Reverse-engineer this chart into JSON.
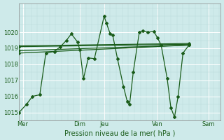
{
  "title": "",
  "xlabel": "Pression niveau de la mer( hPa )",
  "ylim": [
    1014.5,
    1021.8
  ],
  "xlim": [
    0,
    8.3
  ],
  "bg_color": "#ceeaea",
  "line_color": "#1a5c1a",
  "xtick_labels": [
    "Mer",
    "Dim",
    "Jeu",
    "Ven",
    "Sam"
  ],
  "xtick_positions": [
    0.15,
    2.5,
    3.5,
    5.7,
    7.8
  ],
  "ytick_values": [
    1015,
    1016,
    1017,
    1018,
    1019,
    1020
  ],
  "series_main": [
    0.0,
    1015.0,
    0.3,
    1015.5,
    0.55,
    1016.0,
    0.85,
    1016.1,
    1.1,
    1018.7,
    1.45,
    1018.8,
    1.7,
    1019.1,
    1.95,
    1019.5,
    2.15,
    1019.9,
    2.4,
    1019.4,
    2.5,
    1018.9,
    2.65,
    1017.1,
    2.85,
    1018.4,
    3.1,
    1018.35,
    3.5,
    1021.0,
    3.6,
    1020.55,
    3.75,
    1019.9,
    3.85,
    1019.85,
    4.05,
    1018.35,
    4.3,
    1016.6,
    4.45,
    1015.7,
    4.55,
    1015.5,
    4.7,
    1017.5,
    4.95,
    1020.0,
    5.1,
    1020.1,
    5.3,
    1020.0,
    5.55,
    1020.05,
    5.7,
    1019.65,
    5.85,
    1019.2,
    6.1,
    1017.1,
    6.25,
    1015.3,
    6.4,
    1014.7,
    6.55,
    1016.0,
    6.75,
    1018.7,
    7.0,
    1019.2
  ],
  "series_trend": [
    [
      0.0,
      1018.7,
      7.0,
      1019.2
    ],
    [
      0.0,
      1018.85,
      7.0,
      1019.2
    ],
    [
      0.0,
      1019.1,
      7.0,
      1019.25
    ],
    [
      0.0,
      1019.15,
      7.0,
      1019.3
    ]
  ],
  "vlines": [
    2.5,
    3.5,
    5.7,
    7.8
  ]
}
